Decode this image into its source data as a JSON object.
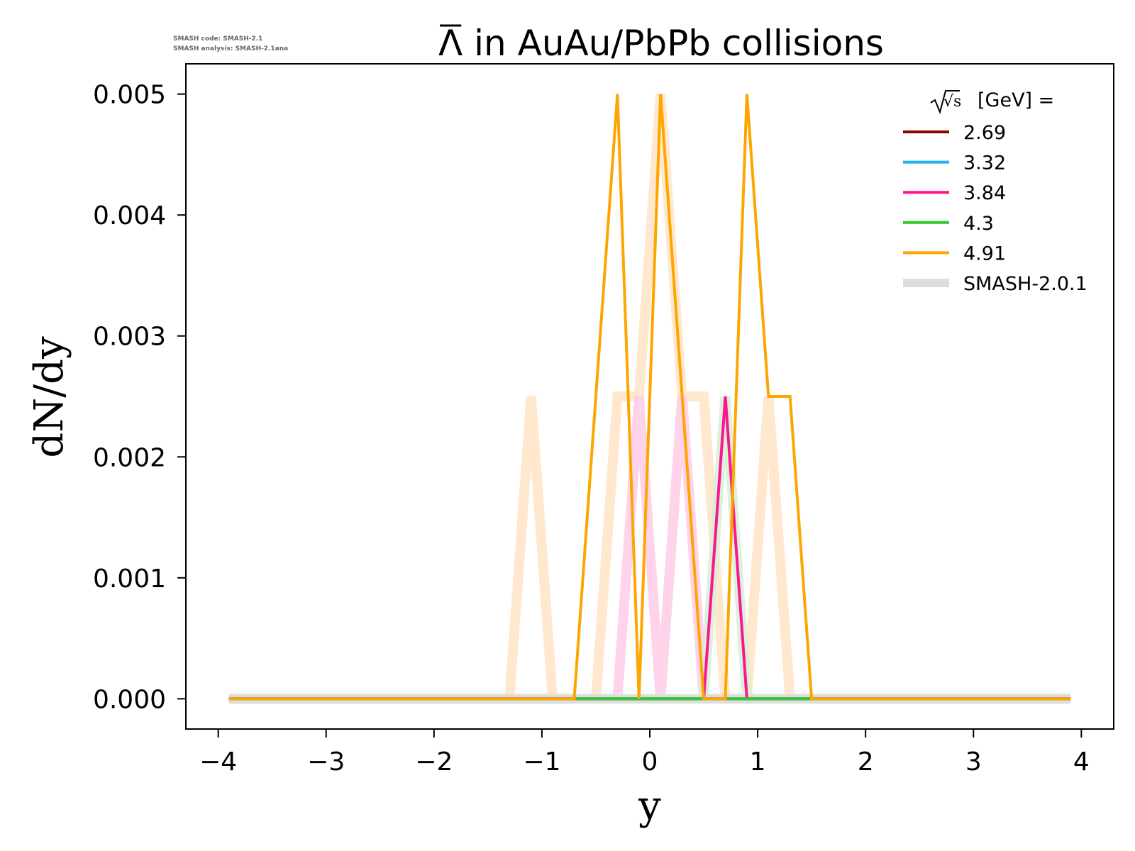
{
  "meta": {
    "code_line": "SMASH code:      SMASH-2.1",
    "analysis_line": "SMASH analysis: SMASH-2.1ana"
  },
  "title_particle": "Λ",
  "title_rest": " in AuAu/PbPb collisions",
  "chart_data": {
    "type": "line",
    "title": "Λ̄ in AuAu/PbPb collisions",
    "xlabel": "y",
    "ylabel": "dN/dy",
    "xlim": [
      -4.3,
      4.3
    ],
    "ylim": [
      -0.00025,
      0.00525
    ],
    "xticks": [
      -4,
      -3,
      -2,
      -1,
      0,
      1,
      2,
      3,
      4
    ],
    "xtick_labels": [
      "−4",
      "−3",
      "−2",
      "−1",
      "0",
      "1",
      "2",
      "3",
      "4"
    ],
    "yticks": [
      0,
      0.001,
      0.002,
      0.003,
      0.004,
      0.005
    ],
    "ytick_labels": [
      "0.000",
      "0.001",
      "0.002",
      "0.003",
      "0.004",
      "0.005"
    ],
    "legend": {
      "title_prefix": "√s",
      "title_suffix": "[GeV] =",
      "placement": "top-right"
    },
    "background_series": [
      {
        "color": "#ffe4c4",
        "x": [
          -3.9,
          -1.3,
          -1.1,
          -0.9,
          -0.5,
          -0.3,
          -0.1,
          0.1,
          0.3,
          0.5,
          0.7,
          0.9,
          1.1,
          1.3,
          1.5,
          3.9
        ],
        "y": [
          0,
          0,
          0.0025,
          0,
          0,
          0.0025,
          0.0025,
          0.005,
          0.0025,
          0.0025,
          0,
          0,
          0.0025,
          0,
          0,
          0
        ]
      },
      {
        "color": "#ffcce8",
        "x": [
          -3.9,
          -0.3,
          -0.1,
          0.1,
          0.3,
          0.5,
          3.9
        ],
        "y": [
          0,
          0,
          0.0025,
          0,
          0.0025,
          0,
          0
        ]
      },
      {
        "color": "#d4f0d4",
        "x": [
          -3.9,
          0.5,
          0.7,
          0.9,
          3.9
        ],
        "y": [
          0,
          0,
          0.0025,
          0,
          0
        ]
      }
    ],
    "series": [
      {
        "name": "2.69",
        "color": "#8b0000",
        "x": [
          -3.9,
          3.9
        ],
        "y": [
          0,
          0
        ]
      },
      {
        "name": "3.32",
        "color": "#1eb4f0",
        "x": [
          -3.9,
          3.9
        ],
        "y": [
          0,
          0
        ]
      },
      {
        "name": "3.84",
        "color": "#ff1493",
        "x": [
          -3.9,
          0.5,
          0.7,
          0.9,
          3.9
        ],
        "y": [
          0,
          0,
          0.0025,
          0,
          0
        ]
      },
      {
        "name": "4.3",
        "color": "#32c832",
        "x": [
          -3.9,
          3.9
        ],
        "y": [
          0,
          0
        ]
      },
      {
        "name": "4.91",
        "color": "#ffa500",
        "x": [
          -3.9,
          -0.7,
          -0.3,
          -0.1,
          0.1,
          0.5,
          0.7,
          0.9,
          1.1,
          1.3,
          1.5,
          3.9
        ],
        "y": [
          0,
          0,
          0.005,
          0,
          0.005,
          0,
          0,
          0.005,
          0.0025,
          0.0025,
          0,
          0
        ]
      }
    ],
    "reference_series": {
      "name": "SMASH-2.0.1",
      "color": "#dddddd",
      "x": [
        -3.9,
        3.9
      ],
      "y": [
        0,
        0
      ]
    }
  }
}
